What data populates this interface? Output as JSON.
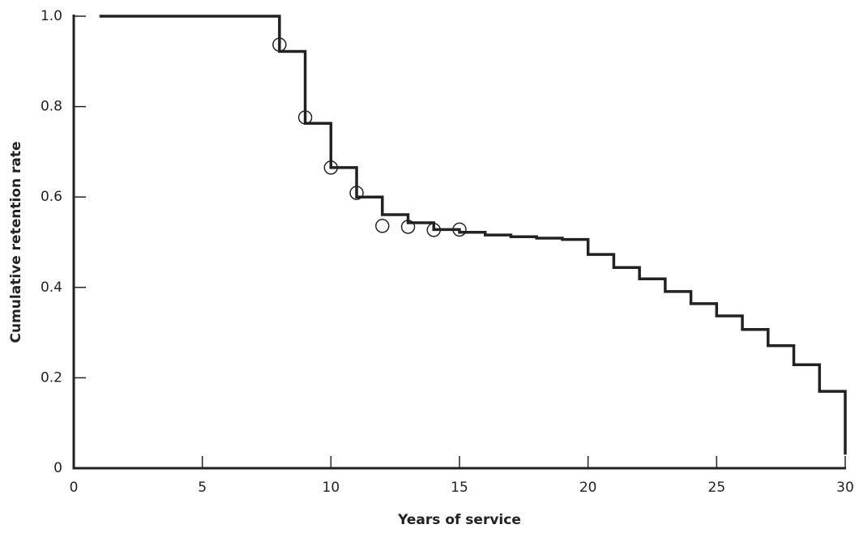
{
  "chart_data": {
    "type": "line",
    "xlabel": "Years of service",
    "ylabel": "Cumulative retention rate",
    "xlim": [
      0,
      30
    ],
    "xticks": [
      0,
      5,
      10,
      15,
      20,
      25,
      30
    ],
    "ylim": [
      0,
      1
    ],
    "yticks": [
      0,
      0.2,
      0.4,
      0.6,
      0.8,
      {
        "value": 1,
        "label": "1.0"
      }
    ],
    "series": [
      {
        "color": "#222222",
        "step": "post",
        "marker": "none",
        "x": [
          1,
          8,
          9,
          10,
          11,
          12,
          13,
          14,
          15,
          16,
          17,
          18,
          19,
          20,
          21,
          22,
          23,
          24,
          25,
          26,
          27,
          28,
          29,
          30
        ],
        "values": [
          1.0,
          0.922,
          0.763,
          0.665,
          0.6,
          0.561,
          0.543,
          0.528,
          0.522,
          0.516,
          0.512,
          0.509,
          0.506,
          0.473,
          0.444,
          0.419,
          0.391,
          0.364,
          0.337,
          0.307,
          0.271,
          0.229,
          0.17,
          0.03
        ]
      },
      {
        "color": "#222222",
        "step": "none",
        "marker": "circle",
        "x": [
          8,
          9,
          10,
          11,
          12,
          13,
          14,
          15
        ],
        "values": [
          0.937,
          0.776,
          0.665,
          0.609,
          0.536,
          0.534,
          0.527,
          0.528
        ]
      }
    ]
  }
}
